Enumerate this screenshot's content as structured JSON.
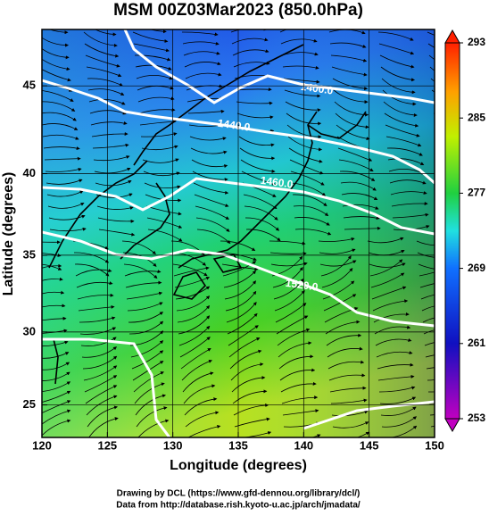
{
  "title": "MSM 00Z03Mar2023 (850.0hPa)",
  "xaxis": {
    "label": "Longitude (degrees)",
    "lim": [
      120,
      150
    ],
    "ticks": [
      120,
      125,
      130,
      135,
      140,
      145,
      150
    ]
  },
  "yaxis": {
    "label": "Latitude  (degrees)",
    "lim": [
      22.7,
      48
    ],
    "ticks": [
      25,
      30,
      35,
      40,
      45
    ]
  },
  "colorbar": {
    "lim": [
      253,
      293
    ],
    "ticks": [
      253,
      261,
      269,
      277,
      285,
      293
    ]
  },
  "contour_labels": [
    "1400.0",
    "1440.0",
    "1460.0",
    "1520.0"
  ],
  "credits": [
    "Drawing by DCL (https://www.gfd-dennou.org/library/dcl/)",
    "Data from http://database.rish.kyoto-u.ac.jp/arch/jmadata/"
  ]
}
